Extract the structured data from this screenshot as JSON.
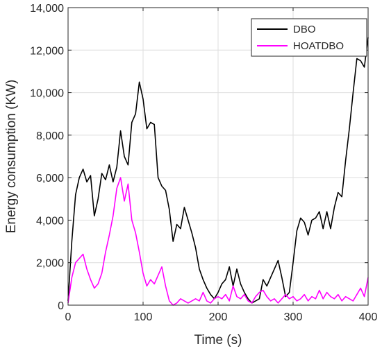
{
  "chart_data": {
    "type": "line",
    "title": "",
    "xlabel": "Time (s)",
    "ylabel": "Energy consumption (KW)",
    "xlim": [
      0,
      400
    ],
    "ylim": [
      0,
      14000
    ],
    "x_ticks": [
      0,
      100,
      200,
      300,
      400
    ],
    "y_ticks": [
      0,
      2000,
      4000,
      6000,
      8000,
      10000,
      12000,
      14000
    ],
    "x_tick_labels": [
      "0",
      "100",
      "200",
      "300",
      "400"
    ],
    "y_tick_labels": [
      "0",
      "2,000",
      "4,000",
      "6,000",
      "8,000",
      "10,000",
      "12,000",
      "14,000"
    ],
    "grid": true,
    "legend_position": "top-right",
    "series": [
      {
        "name": "DBO",
        "color": "#000000",
        "x": [
          0,
          5,
          10,
          15,
          20,
          25,
          30,
          35,
          40,
          45,
          50,
          55,
          60,
          65,
          70,
          75,
          80,
          85,
          90,
          95,
          100,
          105,
          110,
          115,
          120,
          125,
          130,
          135,
          140,
          145,
          150,
          155,
          160,
          165,
          170,
          175,
          180,
          185,
          190,
          195,
          200,
          205,
          210,
          215,
          220,
          225,
          230,
          235,
          240,
          245,
          250,
          255,
          260,
          265,
          270,
          275,
          280,
          285,
          290,
          295,
          300,
          305,
          310,
          315,
          320,
          325,
          330,
          335,
          340,
          345,
          350,
          355,
          360,
          365,
          370,
          375,
          380,
          385,
          390,
          395,
          400
        ],
        "y": [
          200,
          3000,
          5200,
          6000,
          6400,
          5800,
          6100,
          4200,
          5000,
          6200,
          5900,
          6600,
          5800,
          6500,
          8200,
          7000,
          6600,
          8600,
          9000,
          10500,
          9700,
          8300,
          8600,
          8500,
          6000,
          5600,
          5400,
          4500,
          3000,
          3800,
          3600,
          4600,
          4000,
          3400,
          2700,
          1700,
          1200,
          800,
          500,
          300,
          600,
          1000,
          1200,
          1800,
          900,
          1700,
          1000,
          600,
          300,
          100,
          200,
          300,
          1200,
          900,
          1300,
          1700,
          2100,
          1300,
          400,
          600,
          2000,
          3500,
          4100,
          3900,
          3300,
          4000,
          4100,
          4400,
          3600,
          4400,
          3600,
          4600,
          5300,
          5100,
          6800,
          8300,
          10000,
          11600,
          11500,
          11200,
          12600
        ]
      },
      {
        "name": "HOATDBO",
        "color": "#ff00ff",
        "x": [
          0,
          5,
          10,
          15,
          20,
          25,
          30,
          35,
          40,
          45,
          50,
          55,
          60,
          65,
          70,
          75,
          80,
          85,
          90,
          95,
          100,
          105,
          110,
          115,
          120,
          125,
          130,
          135,
          140,
          145,
          150,
          155,
          160,
          165,
          170,
          175,
          180,
          185,
          190,
          195,
          200,
          205,
          210,
          215,
          220,
          225,
          230,
          235,
          240,
          245,
          250,
          255,
          260,
          265,
          270,
          275,
          280,
          285,
          290,
          295,
          300,
          305,
          310,
          315,
          320,
          325,
          330,
          335,
          340,
          345,
          350,
          355,
          360,
          365,
          370,
          375,
          380,
          385,
          390,
          395,
          400
        ],
        "y": [
          100,
          1300,
          2000,
          2200,
          2400,
          1700,
          1200,
          800,
          1000,
          1500,
          2500,
          3300,
          4200,
          5500,
          6000,
          4900,
          5700,
          4000,
          3400,
          2500,
          1500,
          900,
          1200,
          1000,
          1400,
          1800,
          900,
          200,
          0,
          100,
          300,
          200,
          100,
          200,
          300,
          200,
          600,
          200,
          100,
          300,
          400,
          300,
          500,
          200,
          900,
          400,
          300,
          500,
          200,
          100,
          400,
          600,
          700,
          400,
          200,
          300,
          100,
          300,
          500,
          300,
          400,
          200,
          300,
          500,
          200,
          400,
          300,
          700,
          300,
          600,
          400,
          300,
          500,
          200,
          400,
          300,
          200,
          500,
          800,
          400,
          1300
        ]
      }
    ]
  }
}
